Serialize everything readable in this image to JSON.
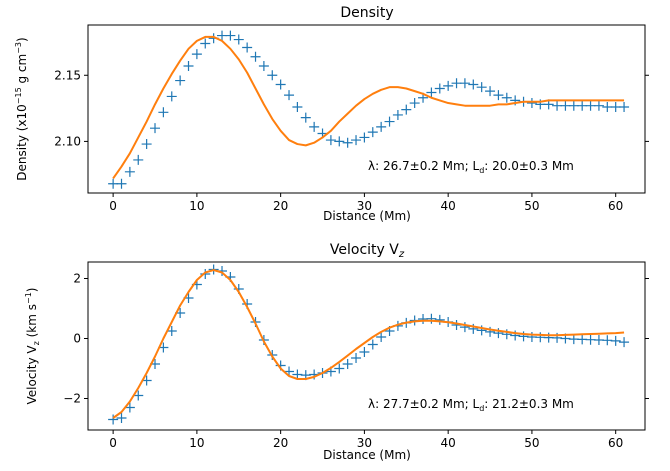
{
  "colors": {
    "data": "#1f77b4",
    "fit": "#ff7f0e",
    "axes": "#000000",
    "background": "#ffffff"
  },
  "chart_data": [
    {
      "type": "line",
      "title": "Density",
      "ylabel_parts": {
        "main": "Density (x10",
        "exp": "−15",
        "unit": " g cm",
        "unit_exp": "−3",
        "close": ")"
      },
      "xlabel": "Distance (Mm)",
      "xlim": [
        -3.0,
        63.5
      ],
      "ylim": [
        2.061,
        2.188
      ],
      "xticks": [
        0,
        10,
        20,
        30,
        40,
        50,
        60
      ],
      "xtick_labels": [
        "0",
        "10",
        "20",
        "30",
        "40",
        "50",
        "60"
      ],
      "yticks": [
        2.1,
        2.15
      ],
      "ytick_labels": [
        "2.10",
        "2.15"
      ],
      "annotation": {
        "text_a": "λ: 26.7±0.2 Mm; L",
        "sub": "d",
        "text_b": ": 20.0±0.3 Mm"
      },
      "series": [
        {
          "style": "markers-plus",
          "x": [
            0,
            1,
            2,
            3,
            4,
            5,
            6,
            7,
            8,
            9,
            10,
            11,
            12,
            13,
            14,
            15,
            16,
            17,
            18,
            19,
            20,
            21,
            22,
            23,
            24,
            25,
            26,
            27,
            28,
            29,
            30,
            31,
            32,
            33,
            34,
            35,
            36,
            37,
            38,
            39,
            40,
            41,
            42,
            43,
            44,
            45,
            46,
            47,
            48,
            49,
            50,
            51,
            52,
            53,
            54,
            55,
            56,
            57,
            58,
            59,
            60,
            61
          ],
          "y": [
            2.068,
            2.068,
            2.077,
            2.086,
            2.098,
            2.11,
            2.122,
            2.134,
            2.146,
            2.157,
            2.166,
            2.174,
            2.178,
            2.18,
            2.18,
            2.177,
            2.171,
            2.164,
            2.157,
            2.15,
            2.143,
            2.135,
            2.126,
            2.118,
            2.111,
            2.106,
            2.101,
            2.1,
            2.099,
            2.101,
            2.103,
            2.107,
            2.111,
            2.115,
            2.12,
            2.124,
            2.129,
            2.133,
            2.137,
            2.14,
            2.142,
            2.144,
            2.144,
            2.143,
            2.141,
            2.138,
            2.135,
            2.133,
            2.131,
            2.13,
            2.129,
            2.128,
            2.128,
            2.127,
            2.127,
            2.127,
            2.127,
            2.127,
            2.127,
            2.126,
            2.126,
            2.126
          ]
        },
        {
          "style": "line",
          "x": [
            0,
            1,
            2,
            3,
            4,
            5,
            6,
            7,
            8,
            9,
            10,
            11,
            12,
            13,
            14,
            15,
            16,
            17,
            18,
            19,
            20,
            21,
            22,
            23,
            24,
            25,
            26,
            27,
            28,
            29,
            30,
            31,
            32,
            33,
            34,
            35,
            36,
            37,
            38,
            39,
            40,
            41,
            42,
            43,
            44,
            45,
            46,
            47,
            48,
            49,
            50,
            51,
            52,
            53,
            54,
            55,
            56,
            57,
            58,
            59,
            60,
            61
          ],
          "y": [
            2.072,
            2.081,
            2.091,
            2.103,
            2.115,
            2.128,
            2.14,
            2.151,
            2.161,
            2.17,
            2.176,
            2.179,
            2.179,
            2.176,
            2.17,
            2.162,
            2.152,
            2.14,
            2.128,
            2.117,
            2.108,
            2.101,
            2.098,
            2.097,
            2.099,
            2.103,
            2.108,
            2.115,
            2.121,
            2.127,
            2.132,
            2.136,
            2.139,
            2.141,
            2.141,
            2.14,
            2.138,
            2.136,
            2.133,
            2.131,
            2.129,
            2.128,
            2.127,
            2.127,
            2.127,
            2.127,
            2.128,
            2.128,
            2.129,
            2.13,
            2.13,
            2.13,
            2.131,
            2.131,
            2.131,
            2.131,
            2.131,
            2.131,
            2.131,
            2.131,
            2.131,
            2.131
          ]
        }
      ]
    },
    {
      "type": "line",
      "title_parts": {
        "main": "Velocity V",
        "sub": "z"
      },
      "ylabel_parts": {
        "main": "Velocity V",
        "sub": "z",
        "unit": " (km s",
        "unit_exp": "−1",
        "close": ")"
      },
      "xlabel": "Distance (Mm)",
      "xlim": [
        -3.0,
        63.5
      ],
      "ylim": [
        -3.05,
        2.55
      ],
      "xticks": [
        0,
        10,
        20,
        30,
        40,
        50,
        60
      ],
      "xtick_labels": [
        "0",
        "10",
        "20",
        "30",
        "40",
        "50",
        "60"
      ],
      "yticks": [
        -2,
        0,
        2
      ],
      "ytick_labels": [
        "−2",
        "0",
        "2"
      ],
      "annotation": {
        "text_a": "λ: 27.7±0.2 Mm; L",
        "sub": "d",
        "text_b": ": 21.2±0.3 Mm"
      },
      "series": [
        {
          "style": "markers-plus",
          "x": [
            0,
            1,
            2,
            3,
            4,
            5,
            6,
            7,
            8,
            9,
            10,
            11,
            12,
            13,
            14,
            15,
            16,
            17,
            18,
            19,
            20,
            21,
            22,
            23,
            24,
            25,
            26,
            27,
            28,
            29,
            30,
            31,
            32,
            33,
            34,
            35,
            36,
            37,
            38,
            39,
            40,
            41,
            42,
            43,
            44,
            45,
            46,
            47,
            48,
            49,
            50,
            51,
            52,
            53,
            54,
            55,
            56,
            57,
            58,
            59,
            60,
            61
          ],
          "y": [
            -2.7,
            -2.65,
            -2.3,
            -1.9,
            -1.4,
            -0.85,
            -0.3,
            0.25,
            0.85,
            1.35,
            1.8,
            2.15,
            2.3,
            2.25,
            2.05,
            1.65,
            1.15,
            0.55,
            -0.05,
            -0.55,
            -0.9,
            -1.1,
            -1.2,
            -1.22,
            -1.2,
            -1.15,
            -1.1,
            -1.0,
            -0.85,
            -0.65,
            -0.45,
            -0.2,
            0.05,
            0.25,
            0.42,
            0.52,
            0.6,
            0.65,
            0.66,
            0.62,
            0.55,
            0.45,
            0.38,
            0.32,
            0.27,
            0.22,
            0.18,
            0.14,
            0.1,
            0.07,
            0.05,
            0.04,
            0.03,
            0.02,
            0.0,
            -0.02,
            -0.03,
            -0.04,
            -0.05,
            -0.06,
            -0.08,
            -0.12
          ]
        },
        {
          "style": "line",
          "x": [
            0,
            1,
            2,
            3,
            4,
            5,
            6,
            7,
            8,
            9,
            10,
            11,
            12,
            13,
            14,
            15,
            16,
            17,
            18,
            19,
            20,
            21,
            22,
            23,
            24,
            25,
            26,
            27,
            28,
            29,
            30,
            31,
            32,
            33,
            34,
            35,
            36,
            37,
            38,
            39,
            40,
            41,
            42,
            43,
            44,
            45,
            46,
            47,
            48,
            49,
            50,
            51,
            52,
            53,
            54,
            55,
            56,
            57,
            58,
            59,
            60,
            61
          ],
          "y": [
            -2.65,
            -2.45,
            -2.1,
            -1.65,
            -1.15,
            -0.6,
            0.0,
            0.55,
            1.1,
            1.55,
            1.95,
            2.2,
            2.28,
            2.2,
            1.95,
            1.55,
            1.05,
            0.5,
            -0.1,
            -0.6,
            -1.0,
            -1.25,
            -1.35,
            -1.35,
            -1.28,
            -1.15,
            -0.98,
            -0.78,
            -0.57,
            -0.35,
            -0.15,
            0.05,
            0.22,
            0.36,
            0.46,
            0.53,
            0.57,
            0.59,
            0.59,
            0.57,
            0.54,
            0.5,
            0.45,
            0.4,
            0.35,
            0.3,
            0.26,
            0.22,
            0.18,
            0.15,
            0.13,
            0.12,
            0.11,
            0.11,
            0.12,
            0.13,
            0.14,
            0.15,
            0.16,
            0.17,
            0.18,
            0.2
          ]
        }
      ]
    }
  ]
}
